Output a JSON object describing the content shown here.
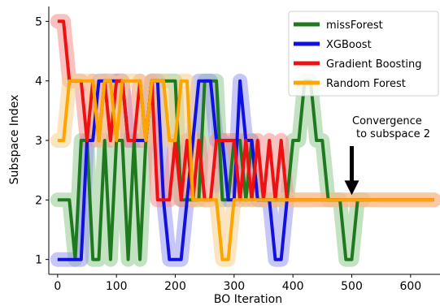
{
  "chart_data": {
    "type": "line",
    "xlabel": "BO Iteration",
    "ylabel": "Subspace Index",
    "xlim": [
      -15,
      650
    ],
    "ylim": [
      0.75,
      5.25
    ],
    "xticks": [
      0,
      100,
      200,
      300,
      400,
      500,
      600
    ],
    "yticks": [
      1,
      2,
      3,
      4,
      5
    ],
    "grid": false,
    "legend_position": "top-right",
    "annotation": {
      "lines": [
        "Convergence",
        "to subspace 2"
      ],
      "arrow_target": [
        500,
        2
      ]
    },
    "series": [
      {
        "name": "missForest",
        "color": "#1f7a1f",
        "band_color": "#8fcb8f",
        "x": [
          0,
          10,
          20,
          30,
          40,
          50,
          60,
          70,
          80,
          90,
          100,
          110,
          120,
          130,
          140,
          150,
          160,
          170,
          180,
          190,
          200,
          210,
          220,
          230,
          240,
          250,
          260,
          270,
          280,
          290,
          300,
          310,
          320,
          330,
          340,
          350,
          360,
          370,
          380,
          390,
          400,
          410,
          420,
          430,
          440,
          450,
          460,
          470,
          480,
          490,
          500,
          510,
          520
        ],
        "y": [
          2,
          2,
          2,
          1,
          3,
          3,
          1,
          1,
          3,
          1,
          3,
          3,
          1,
          3,
          1,
          3,
          4,
          4,
          4,
          4,
          4,
          2,
          2,
          2,
          2,
          4,
          4,
          4,
          2,
          2,
          3,
          3,
          2,
          3,
          2,
          2,
          2,
          2,
          2,
          2,
          3,
          3,
          4,
          4,
          3,
          3,
          2,
          2,
          2,
          1,
          1,
          2,
          2
        ]
      },
      {
        "name": "XGBoost",
        "color": "#1010e0",
        "band_color": "#9999f0",
        "x": [
          0,
          10,
          20,
          30,
          40,
          50,
          60,
          70,
          80,
          90,
          100,
          110,
          120,
          130,
          140,
          150,
          160,
          170,
          180,
          190,
          200,
          210,
          220,
          230,
          240,
          250,
          260,
          270,
          280,
          290,
          300,
          310,
          320,
          330,
          340,
          350,
          360,
          370,
          380,
          390
        ],
        "y": [
          1,
          1,
          1,
          1,
          1,
          3,
          3,
          4,
          4,
          4,
          4,
          4,
          3,
          3,
          3,
          3,
          4,
          4,
          2,
          1,
          1,
          1,
          2,
          3,
          4,
          4,
          4,
          3,
          3,
          2,
          2,
          4,
          3,
          3,
          2,
          2,
          2,
          1,
          1,
          2
        ]
      },
      {
        "name": "Gradient Boosting",
        "color": "#ee1111",
        "band_color": "#f58e8e",
        "x": [
          0,
          10,
          20,
          30,
          40,
          50,
          60,
          70,
          80,
          90,
          100,
          110,
          120,
          130,
          140,
          150,
          160,
          170,
          180,
          190,
          200,
          210,
          220,
          230,
          240,
          250,
          260,
          270,
          280,
          290,
          300,
          310,
          320,
          330,
          340,
          350,
          360,
          370,
          380,
          390,
          400,
          410,
          420,
          430,
          440,
          450,
          460,
          470,
          480,
          490,
          500,
          510,
          520,
          530,
          540,
          550,
          560,
          570,
          580,
          590,
          600,
          610,
          620,
          630,
          640
        ],
        "y": [
          5,
          5,
          4,
          4,
          4,
          3,
          4,
          3,
          4,
          3,
          4,
          4,
          3,
          3,
          4,
          3,
          4,
          2,
          2,
          2,
          3,
          2,
          3,
          2,
          3,
          2,
          2,
          3,
          3,
          3,
          3,
          2,
          3,
          2,
          3,
          2,
          3,
          2,
          3,
          2,
          2,
          2,
          2,
          2,
          2,
          2,
          2,
          2,
          2,
          2,
          2,
          2,
          2,
          2,
          2,
          2,
          2,
          2,
          2,
          2,
          2,
          2,
          2,
          2,
          2
        ]
      },
      {
        "name": "Random Forest",
        "color": "#ffa500",
        "band_color": "#f7cf8c",
        "x": [
          0,
          10,
          20,
          30,
          40,
          50,
          60,
          70,
          80,
          90,
          100,
          110,
          120,
          130,
          140,
          150,
          160,
          170,
          180,
          190,
          200,
          210,
          220,
          230,
          240,
          250,
          260,
          270,
          280,
          290,
          300,
          310,
          320,
          330,
          340,
          350,
          360,
          370,
          380,
          390,
          400,
          410,
          420,
          430,
          440,
          450,
          460,
          470,
          480,
          490,
          500,
          510,
          520,
          530,
          540,
          550,
          560,
          570,
          580,
          590,
          600,
          610,
          620,
          630,
          640
        ],
        "y": [
          3,
          3,
          4,
          4,
          4,
          4,
          4,
          3,
          4,
          4,
          3,
          4,
          4,
          4,
          4,
          3,
          4,
          4,
          4,
          3,
          3,
          4,
          4,
          2,
          2,
          2,
          2,
          2,
          1,
          1,
          2,
          2,
          2,
          2,
          2,
          2,
          2,
          2,
          2,
          2,
          2,
          2,
          2,
          2,
          2,
          2,
          2,
          2,
          2,
          2,
          2,
          2,
          2,
          2,
          2,
          2,
          2,
          2,
          2,
          2,
          2,
          2,
          2,
          2,
          2
        ]
      }
    ]
  }
}
